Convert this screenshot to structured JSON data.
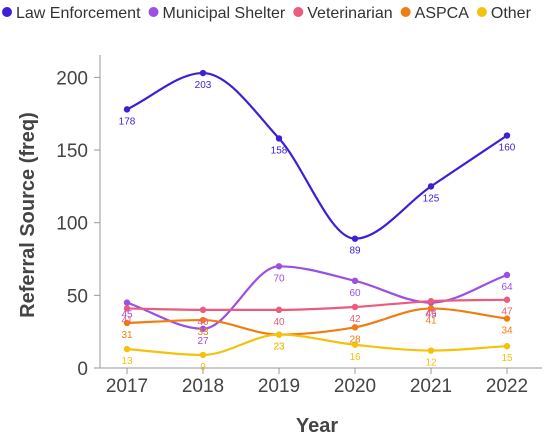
{
  "chart_data": {
    "type": "line",
    "xlabel": "Year",
    "ylabel": "Referral Source (freq)",
    "categories": [
      "2017",
      "2018",
      "2019",
      "2020",
      "2021",
      "2022"
    ],
    "ylim": [
      0,
      220
    ],
    "yticks": [
      0,
      50,
      100,
      150,
      200
    ],
    "grid": false,
    "legend_position": "top",
    "series": [
      {
        "name": "Law Enforcement",
        "color": "#3e1fd6",
        "values": [
          178,
          203,
          158,
          89,
          125,
          160
        ]
      },
      {
        "name": "Municipal Shelter",
        "color": "#9b4fe3",
        "values": [
          45,
          27,
          70,
          60,
          45,
          64
        ]
      },
      {
        "name": "Veterinarian",
        "color": "#ec5a7e",
        "values": [
          41,
          40,
          40,
          42,
          46,
          47
        ]
      },
      {
        "name": "ASPCA",
        "color": "#f07d0f",
        "values": [
          31,
          33,
          23,
          28,
          41,
          34
        ]
      },
      {
        "name": "Other",
        "color": "#f4c20d",
        "values": [
          13,
          9,
          23,
          16,
          12,
          15
        ]
      }
    ]
  }
}
